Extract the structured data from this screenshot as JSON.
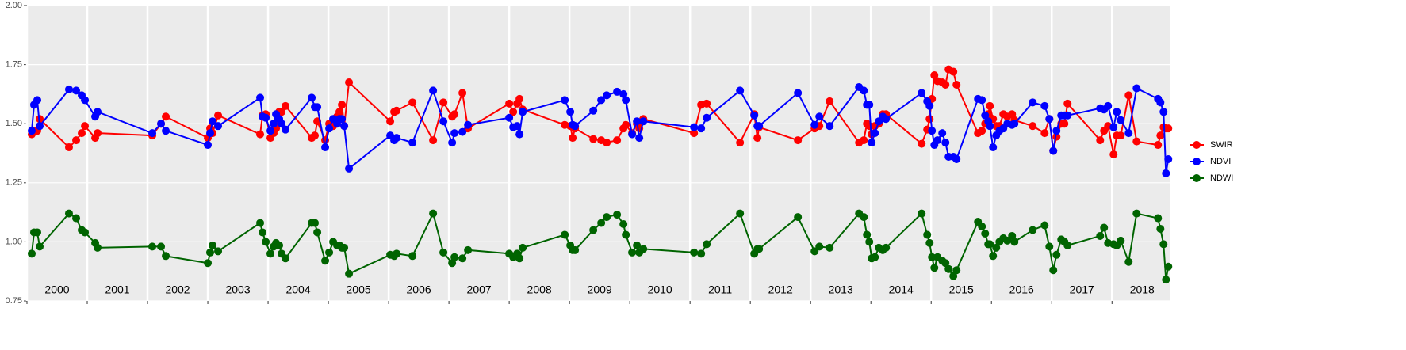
{
  "chart_data": {
    "type": "line",
    "x": [
      2000.079,
      2000.118,
      2000.171,
      2000.211,
      2000.697,
      2000.816,
      2000.908,
      2000.961,
      2001.132,
      2001.171,
      2002.079,
      2002.224,
      2002.303,
      2003.0,
      2003.039,
      2003.079,
      2003.171,
      2003.868,
      2003.908,
      2003.961,
      2004.039,
      2004.092,
      2004.132,
      2004.184,
      2004.224,
      2004.289,
      2004.724,
      2004.776,
      2004.816,
      2004.947,
      2005.013,
      2005.079,
      2005.145,
      2005.184,
      2005.224,
      2005.263,
      2005.342,
      2006.026,
      2006.092,
      2006.132,
      2006.395,
      2006.737,
      2006.908,
      2007.053,
      2007.092,
      2007.224,
      2007.316,
      2008.0,
      2008.066,
      2008.132,
      2008.171,
      2008.224,
      2008.921,
      2009.013,
      2009.053,
      2009.092,
      2009.395,
      2009.526,
      2009.618,
      2009.789,
      2009.895,
      2009.934,
      2010.039,
      2010.118,
      2010.158,
      2010.224,
      2011.066,
      2011.184,
      2011.276,
      2011.829,
      2012.066,
      2012.118,
      2012.145,
      2012.789,
      2013.066,
      2013.145,
      2013.316,
      2013.803,
      2013.882,
      2013.934,
      2013.974,
      2014.013,
      2014.066,
      2014.132,
      2014.197,
      2014.25,
      2014.842,
      2014.934,
      2014.974,
      2015.013,
      2015.053,
      2015.105,
      2015.184,
      2015.237,
      2015.289,
      2015.368,
      2015.421,
      2015.776,
      2015.842,
      2015.895,
      2015.947,
      2015.974,
      2016.026,
      2016.079,
      2016.132,
      2016.197,
      2016.263,
      2016.342,
      2016.382,
      2016.684,
      2016.882,
      2016.961,
      2017.026,
      2017.079,
      2017.158,
      2017.211,
      2017.263,
      2017.803,
      2017.868,
      2017.934,
      2018.026,
      2018.079,
      2018.145,
      2018.276,
      2018.408,
      2018.763,
      2018.803,
      2018.855,
      2018.895,
      2018.934
    ],
    "series": [
      {
        "name": "SWIR",
        "color": "#ff0000",
        "values": [
          1.455,
          1.47,
          1.47,
          1.52,
          1.4,
          1.43,
          1.46,
          1.49,
          1.44,
          1.46,
          1.45,
          1.5,
          1.53,
          1.44,
          1.48,
          1.46,
          1.535,
          1.455,
          1.535,
          1.54,
          1.44,
          1.46,
          1.48,
          1.55,
          1.55,
          1.575,
          1.44,
          1.45,
          1.51,
          1.43,
          1.5,
          1.49,
          1.53,
          1.55,
          1.58,
          1.49,
          1.675,
          1.51,
          1.55,
          1.555,
          1.59,
          1.43,
          1.59,
          1.53,
          1.54,
          1.63,
          1.48,
          1.585,
          1.55,
          1.585,
          1.605,
          1.56,
          1.495,
          1.49,
          1.44,
          1.48,
          1.435,
          1.43,
          1.42,
          1.43,
          1.48,
          1.495,
          1.46,
          1.5,
          1.48,
          1.52,
          1.46,
          1.58,
          1.585,
          1.42,
          1.54,
          1.44,
          1.485,
          1.43,
          1.48,
          1.49,
          1.595,
          1.42,
          1.43,
          1.5,
          1.49,
          1.455,
          1.49,
          1.5,
          1.54,
          1.54,
          1.415,
          1.475,
          1.52,
          1.605,
          1.705,
          1.68,
          1.675,
          1.665,
          1.73,
          1.72,
          1.665,
          1.46,
          1.47,
          1.5,
          1.54,
          1.575,
          1.52,
          1.49,
          1.49,
          1.54,
          1.53,
          1.54,
          1.515,
          1.49,
          1.46,
          1.52,
          1.385,
          1.445,
          1.5,
          1.5,
          1.585,
          1.43,
          1.47,
          1.49,
          1.37,
          1.45,
          1.45,
          1.62,
          1.425,
          1.41,
          1.45,
          1.485,
          1.48,
          1.48
        ]
      },
      {
        "name": "NDVI",
        "color": "#0000ff",
        "values": [
          1.47,
          1.58,
          1.6,
          1.49,
          1.645,
          1.64,
          1.62,
          1.6,
          1.53,
          1.55,
          1.46,
          1.5,
          1.47,
          1.41,
          1.46,
          1.51,
          1.49,
          1.61,
          1.53,
          1.525,
          1.47,
          1.5,
          1.54,
          1.52,
          1.5,
          1.475,
          1.61,
          1.57,
          1.57,
          1.4,
          1.48,
          1.52,
          1.5,
          1.52,
          1.52,
          1.49,
          1.31,
          1.45,
          1.43,
          1.44,
          1.42,
          1.64,
          1.51,
          1.42,
          1.46,
          1.465,
          1.495,
          1.525,
          1.485,
          1.49,
          1.455,
          1.55,
          1.6,
          1.55,
          1.495,
          1.49,
          1.555,
          1.6,
          1.62,
          1.635,
          1.625,
          1.6,
          1.455,
          1.51,
          1.44,
          1.51,
          1.485,
          1.48,
          1.525,
          1.64,
          1.535,
          1.49,
          1.49,
          1.63,
          1.495,
          1.53,
          1.49,
          1.655,
          1.64,
          1.58,
          1.58,
          1.42,
          1.46,
          1.51,
          1.53,
          1.52,
          1.63,
          1.595,
          1.575,
          1.47,
          1.41,
          1.43,
          1.46,
          1.42,
          1.36,
          1.36,
          1.35,
          1.605,
          1.6,
          1.535,
          1.51,
          1.49,
          1.4,
          1.45,
          1.47,
          1.48,
          1.5,
          1.495,
          1.5,
          1.59,
          1.575,
          1.52,
          1.385,
          1.47,
          1.535,
          1.535,
          1.535,
          1.565,
          1.56,
          1.575,
          1.485,
          1.55,
          1.515,
          1.46,
          1.65,
          1.605,
          1.59,
          1.55,
          1.29,
          1.35
        ]
      },
      {
        "name": "NDWI",
        "color": "#006400",
        "values": [
          0.95,
          1.04,
          1.04,
          0.98,
          1.12,
          1.1,
          1.05,
          1.04,
          0.995,
          0.975,
          0.98,
          0.98,
          0.94,
          0.91,
          0.955,
          0.985,
          0.96,
          1.08,
          1.04,
          1.0,
          0.95,
          0.98,
          0.995,
          0.985,
          0.95,
          0.93,
          1.08,
          1.08,
          1.04,
          0.92,
          0.955,
          1.0,
          0.985,
          0.985,
          0.975,
          0.975,
          0.865,
          0.945,
          0.94,
          0.95,
          0.94,
          1.12,
          0.955,
          0.91,
          0.935,
          0.93,
          0.965,
          0.95,
          0.935,
          0.95,
          0.93,
          0.975,
          1.03,
          0.985,
          0.965,
          0.965,
          1.05,
          1.08,
          1.105,
          1.115,
          1.075,
          1.03,
          0.955,
          0.985,
          0.955,
          0.97,
          0.955,
          0.95,
          0.99,
          1.12,
          0.95,
          0.97,
          0.97,
          1.105,
          0.96,
          0.98,
          0.975,
          1.12,
          1.105,
          1.03,
          1.0,
          0.93,
          0.935,
          0.975,
          0.965,
          0.975,
          1.12,
          1.03,
          0.995,
          0.935,
          0.89,
          0.935,
          0.92,
          0.91,
          0.885,
          0.855,
          0.88,
          1.085,
          1.065,
          1.035,
          0.99,
          0.99,
          0.94,
          0.975,
          1.0,
          1.015,
          1.005,
          1.025,
          1.0,
          1.05,
          1.07,
          0.98,
          0.88,
          0.945,
          1.01,
          1.0,
          0.985,
          1.025,
          1.06,
          0.995,
          0.99,
          0.985,
          1.005,
          0.915,
          1.12,
          1.1,
          1.055,
          0.99,
          0.84,
          0.895
        ]
      }
    ],
    "xlim": [
      2000,
      2018.97
    ],
    "xticks": [
      2000,
      2001,
      2002,
      2003,
      2004,
      2005,
      2006,
      2007,
      2008,
      2009,
      2010,
      2011,
      2012,
      2013,
      2014,
      2015,
      2016,
      2017,
      2018
    ],
    "ylim": [
      0.75,
      2.0
    ],
    "yticks": [
      {
        "value": 0.75,
        "label": "0.75"
      },
      {
        "value": 1.0,
        "label": "1.00"
      },
      {
        "value": 1.25,
        "label": "1.25"
      },
      {
        "value": 1.5,
        "label": "1.50"
      },
      {
        "value": 1.75,
        "label": "1.75"
      },
      {
        "value": 2.0,
        "label": "2.00"
      }
    ],
    "grid": true,
    "legend": "right"
  }
}
